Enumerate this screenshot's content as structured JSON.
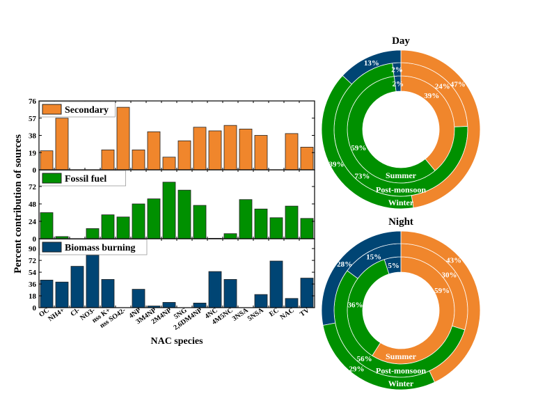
{
  "chart_data": [
    {
      "type": "bar",
      "layout": "stacked-panels",
      "xlabel": "NAC species",
      "ylabel": "Percent contribution of sources",
      "categories": [
        "OC",
        "NH4+",
        "Cl-",
        "NO3-",
        "nss K+",
        "nss SO42-",
        "4NP",
        "3M4NP",
        "2M4NP",
        "5NG",
        "2,6DM4NP",
        "4NC",
        "4M5NC",
        "3NSA",
        "5NSA",
        "EC",
        "NAC",
        "TV"
      ],
      "panels": [
        {
          "name": "Secondary",
          "color": "#F0862C",
          "ylim": [
            0,
            76
          ],
          "yticks": [
            0,
            19,
            38,
            57,
            76
          ],
          "values": [
            21,
            57,
            0,
            0,
            22,
            69,
            22,
            42,
            14,
            32,
            47,
            43,
            49,
            45,
            38,
            0,
            40,
            25
          ]
        },
        {
          "name": "Fossil fuel",
          "color": "#009000",
          "ylim": [
            0,
            95
          ],
          "yticks": [
            0,
            24,
            48,
            72
          ],
          "values": [
            36,
            3,
            0,
            14,
            33,
            30,
            48,
            55,
            78,
            67,
            46,
            0.6,
            7,
            54,
            41,
            29,
            45,
            28
          ]
        },
        {
          "name": "Biomass burning",
          "color": "#004574",
          "ylim": [
            0,
            105
          ],
          "yticks": [
            0,
            18,
            36,
            54,
            72,
            90
          ],
          "values": [
            42,
            39,
            63,
            80,
            43,
            0,
            28,
            2.5,
            8,
            0,
            7,
            55,
            43,
            0,
            20,
            71,
            14,
            45
          ]
        }
      ],
      "legend": "top-left"
    },
    {
      "type": "pie",
      "variant": "nested-donut",
      "title": "Day",
      "sources": [
        "Secondary",
        "Fossil fuel",
        "Biomass burning"
      ],
      "colors": [
        "#F0862C",
        "#009000",
        "#004574"
      ],
      "rings": [
        {
          "name": "Summer",
          "values": [
            39,
            59,
            2
          ],
          "labels": [
            "39%",
            "59%",
            "2%"
          ]
        },
        {
          "name": "Post-monsoon",
          "values": [
            24,
            73,
            2
          ],
          "labels": [
            "24%",
            "73%",
            "2%"
          ]
        },
        {
          "name": "Winter",
          "values": [
            47,
            39,
            13
          ],
          "labels": [
            "47%",
            "39%",
            "13%"
          ]
        }
      ]
    },
    {
      "type": "pie",
      "variant": "nested-donut",
      "title": "Night",
      "sources": [
        "Secondary",
        "Fossil fuel",
        "Biomass burning"
      ],
      "colors": [
        "#F0862C",
        "#009000",
        "#004574"
      ],
      "rings": [
        {
          "name": "Summer",
          "values": [
            59,
            36,
            5
          ],
          "labels": [
            "59%",
            "36%",
            "5%"
          ]
        },
        {
          "name": "Post-monsoon",
          "values": [
            30,
            56,
            15
          ],
          "labels": [
            "30%",
            "56%",
            "15%"
          ]
        },
        {
          "name": "Winter",
          "values": [
            43,
            29,
            28
          ],
          "labels": [
            "43%",
            "29%",
            "28%"
          ]
        }
      ]
    }
  ]
}
